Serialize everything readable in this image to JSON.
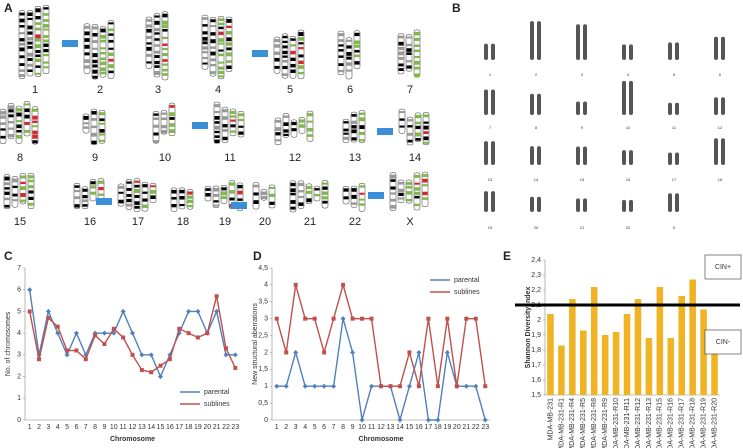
{
  "panels": {
    "a": {
      "label": "A",
      "chromosomes": [
        "1",
        "2",
        "3",
        "4",
        "5",
        "6",
        "7",
        "8",
        "9",
        "10",
        "11",
        "12",
        "13",
        "14",
        "15",
        "16",
        "17",
        "18",
        "19",
        "20",
        "21",
        "22",
        "X"
      ]
    },
    "b": {
      "label": "B",
      "chromosomes": [
        "1",
        "2",
        "3",
        "4",
        "5",
        "6",
        "7",
        "8",
        "9",
        "10",
        "11",
        "12",
        "13",
        "14",
        "15",
        "16",
        "17",
        "18",
        "19",
        "20",
        "21",
        "22",
        "X"
      ]
    }
  },
  "chart_data": [
    {
      "type": "line",
      "panel": "C",
      "y_label": "No. of chromosomes",
      "x_label": "Chromosome",
      "categories": [
        "1",
        "2",
        "3",
        "4",
        "5",
        "6",
        "7",
        "8",
        "9",
        "10",
        "11",
        "12",
        "13",
        "14",
        "15",
        "16",
        "17",
        "18",
        "19",
        "20",
        "21",
        "22",
        "23"
      ],
      "series": [
        {
          "name": "parental",
          "color": "#4f81bd",
          "values": [
            6,
            3,
            5,
            4,
            3,
            4,
            3,
            4,
            4,
            4,
            5,
            4,
            3,
            3,
            2,
            3,
            4,
            5,
            5,
            4,
            5,
            3,
            3
          ]
        },
        {
          "name": "sublines",
          "color": "#c0504d",
          "values": [
            5,
            2.8,
            4.7,
            4.3,
            3.2,
            3.2,
            2.8,
            3.9,
            3.5,
            4.2,
            3.8,
            3,
            2.3,
            2.2,
            2.5,
            2.8,
            4.2,
            4,
            3.8,
            4,
            5.7,
            3.3,
            2.4
          ]
        }
      ],
      "ylim": [
        0,
        7
      ],
      "yticks": [
        0,
        1,
        2,
        3,
        4,
        5,
        6,
        7
      ],
      "legend": "bottom-right"
    },
    {
      "type": "line",
      "panel": "D",
      "y_label": "New structural aberrations",
      "x_label": "Chromosome",
      "categories": [
        "1",
        "2",
        "3",
        "4",
        "5",
        "6",
        "7",
        "8",
        "9",
        "10",
        "11",
        "12",
        "13",
        "14",
        "15",
        "16",
        "17",
        "18",
        "19",
        "20",
        "21",
        "22",
        "23"
      ],
      "series": [
        {
          "name": "parental",
          "color": "#4f81bd",
          "values": [
            1,
            1,
            2,
            1,
            1,
            1,
            1,
            3,
            2,
            0,
            1,
            1,
            1,
            0,
            1,
            2,
            0,
            0,
            2,
            1,
            1,
            1,
            0
          ]
        },
        {
          "name": "sublines",
          "color": "#c0504d",
          "values": [
            3,
            2,
            4,
            3,
            3,
            2,
            3,
            4,
            3,
            3,
            3,
            1,
            1,
            1,
            2,
            1,
            3,
            1,
            3,
            1,
            3,
            3,
            1
          ]
        }
      ],
      "ylim": [
        0,
        4.5
      ],
      "yticks": [
        0,
        {
          "value": 0.5,
          "label": "0,5"
        },
        1,
        {
          "value": 1.5,
          "label": "1,5"
        },
        2,
        {
          "value": 2.5,
          "label": "2,5"
        },
        3,
        {
          "value": 3.5,
          "label": "3,5"
        },
        4,
        {
          "value": 4.5,
          "label": "4,5"
        }
      ],
      "legend": "top-right"
    },
    {
      "type": "bar",
      "panel": "E",
      "y_label": "Shannon Diversity Index",
      "color": "#f0b323",
      "categories": [
        "MDA-MB-231",
        "MDA-MB-231-R1",
        "MDA-MB-231-R4",
        "MDA-MB-231-R5",
        "MDA-MB-231-R8",
        "MDA-MB-231-R9",
        "MDA-MB-231-R10",
        "MDA-MB-231-R11",
        "MDA-MB-231-R12",
        "MDA-MB-231-R13",
        "MDA-MB-231-R15",
        "MDA-MB-231-R16",
        "MDA-MB-231-R17",
        "MDA-MB-231-R18",
        "MDA-MB-231-R19",
        "MDA-MB-231-R20"
      ],
      "values": [
        2.04,
        1.83,
        2.14,
        1.93,
        2.22,
        1.9,
        1.92,
        2.04,
        2.14,
        1.88,
        2.22,
        1.88,
        2.16,
        2.27,
        2.07,
        1.92
      ],
      "ylim": [
        1.5,
        2.4
      ],
      "yticks": [
        {
          "value": 1.5,
          "label": "1,5"
        },
        {
          "value": 1.6,
          "label": "1,6"
        },
        {
          "value": 1.7,
          "label": "1,7"
        },
        {
          "value": 1.8,
          "label": "1,8"
        },
        {
          "value": 1.9,
          "label": "1,9"
        },
        2,
        {
          "value": 2.1,
          "label": "2,1"
        },
        {
          "value": 2.2,
          "label": "2,2"
        },
        {
          "value": 2.3,
          "label": "2,3"
        },
        {
          "value": 2.4,
          "label": "2,4"
        }
      ],
      "threshold": 2.1,
      "above_label": "CIN+",
      "below_label": "CIN-"
    }
  ]
}
